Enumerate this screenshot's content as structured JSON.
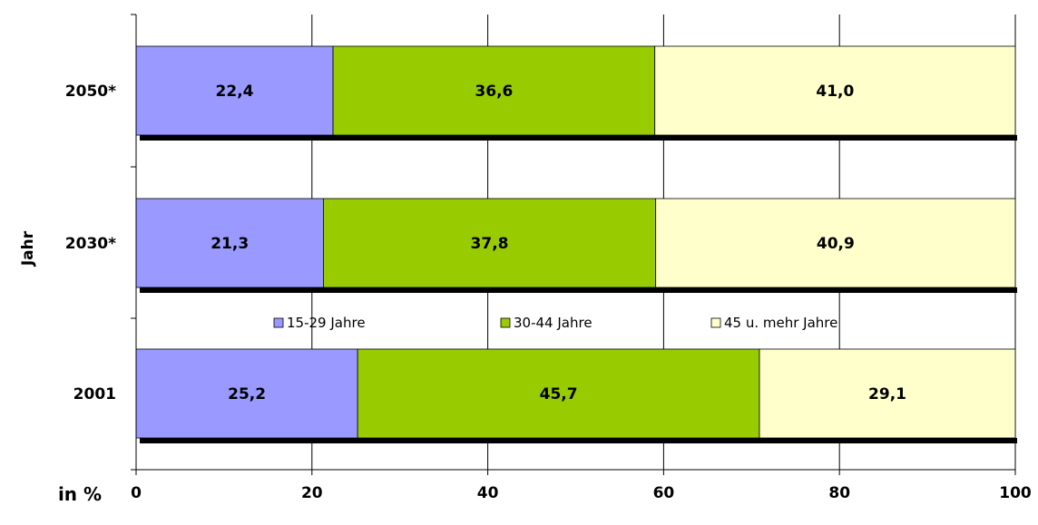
{
  "chart_data": {
    "type": "bar",
    "orientation": "horizontal",
    "stacked": true,
    "categories": [
      "2050*",
      "2030*",
      "2001"
    ],
    "series": [
      {
        "name": "15-29 Jahre",
        "color": "#9999ff",
        "values": [
          22.4,
          21.3,
          25.2
        ],
        "labels": [
          "22,4",
          "21,3",
          "25,2"
        ]
      },
      {
        "name": "30-44 Jahre",
        "color": "#99cc00",
        "values": [
          36.6,
          37.8,
          45.7
        ],
        "labels": [
          "36,6",
          "37,8",
          "45,7"
        ]
      },
      {
        "name": "45 u. mehr Jahre",
        "color": "#ffffcc",
        "values": [
          41.0,
          40.9,
          29.1
        ],
        "labels": [
          "41,0",
          "40,9",
          "29,1"
        ]
      }
    ],
    "xlim": [
      0,
      100
    ],
    "xticks": [
      0,
      20,
      40,
      60,
      80,
      100
    ],
    "xlabel": "",
    "ylabel": "Jahr",
    "unit_label": "in %",
    "grid": "vertical",
    "legend": "center",
    "title": ""
  }
}
